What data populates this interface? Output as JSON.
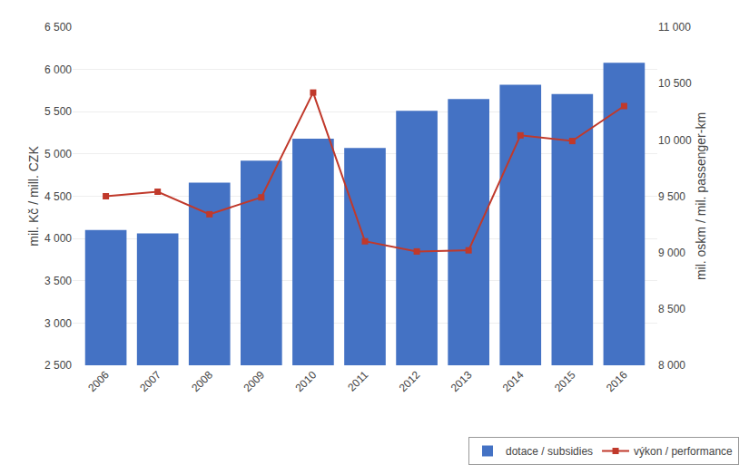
{
  "chart_data": {
    "type": "bar",
    "categories": [
      "2006",
      "2007",
      "2008",
      "2009",
      "2010",
      "2011",
      "2012",
      "2013",
      "2014",
      "2015",
      "2016"
    ],
    "series": [
      {
        "name": "dotace / subsidies",
        "type": "bar",
        "color": "#4472C4",
        "values": [
          4100,
          4060,
          4660,
          4920,
          5180,
          5070,
          5510,
          5650,
          5820,
          5710,
          6080
        ]
      },
      {
        "name": "výkon / performance",
        "type": "line",
        "color": "#C0392B",
        "marker": "square",
        "axis": "y2",
        "values": [
          9500,
          9540,
          9340,
          9490,
          10420,
          9100,
          9010,
          9020,
          10040,
          9990,
          10300
        ]
      }
    ],
    "ylabel": "mil. Kč / mill. CZK",
    "y2label": "mil. oskm / mil. passenger-km",
    "ylim": [
      2500,
      6500
    ],
    "yticks": [
      {
        "value": 2500,
        "label": "2 500"
      },
      {
        "value": 3000,
        "label": "3 000"
      },
      {
        "value": 3500,
        "label": "3 500"
      },
      {
        "value": 4000,
        "label": "4 000"
      },
      {
        "value": 4500,
        "label": "4 500"
      },
      {
        "value": 5000,
        "label": "5 000"
      },
      {
        "value": 5500,
        "label": "5 500"
      },
      {
        "value": 6000,
        "label": "6 000"
      },
      {
        "value": 6500,
        "label": "6 500"
      }
    ],
    "y2lim": [
      8000,
      11000
    ],
    "y2ticks": [
      {
        "value": 8000,
        "label": "8 000"
      },
      {
        "value": 8500,
        "label": "8 500"
      },
      {
        "value": 9000,
        "label": "9 000"
      },
      {
        "value": 9500,
        "label": "9 500"
      },
      {
        "value": 10000,
        "label": "10 000"
      },
      {
        "value": 10500,
        "label": "10 500"
      },
      {
        "value": 11000,
        "label": "11 000"
      }
    ],
    "grid": true,
    "legend": "lower right"
  }
}
